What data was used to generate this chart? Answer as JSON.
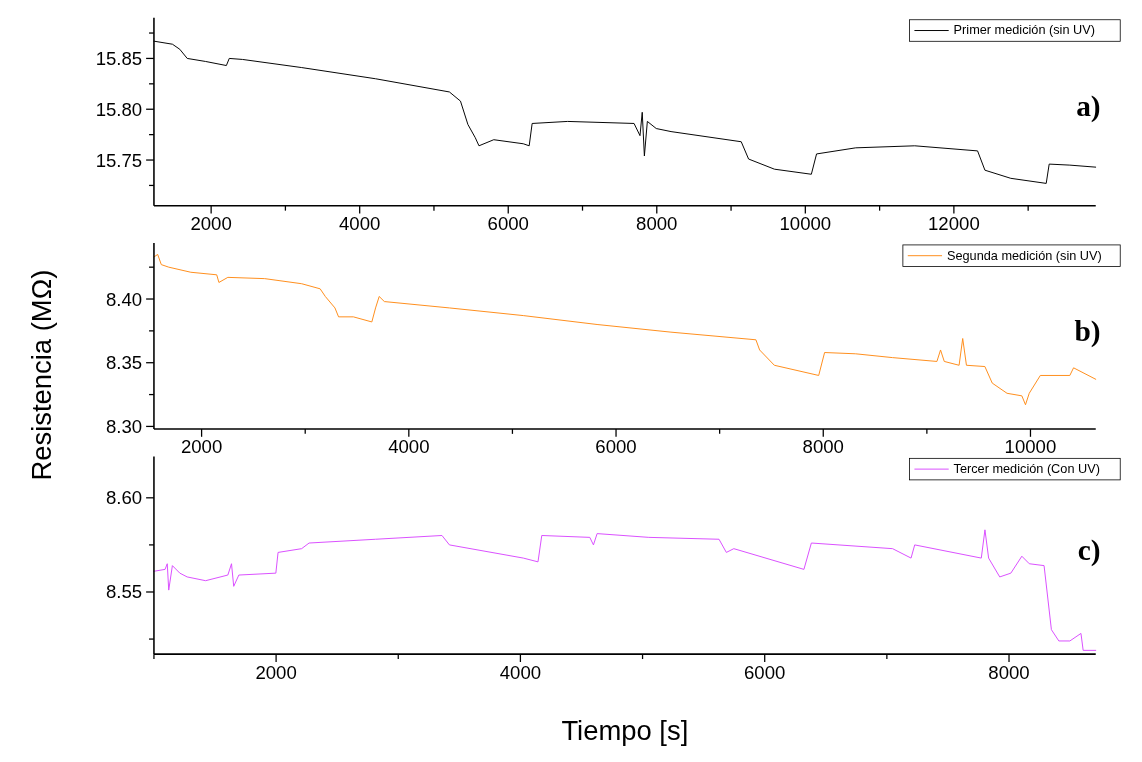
{
  "chart_data": [
    {
      "type": "line",
      "xlim": [
        1230,
        13910
      ],
      "ylim": [
        15.705,
        15.89
      ],
      "xticks": [
        2000,
        {
          "value": 3000,
          "label": null
        },
        4000,
        {
          "value": 5000,
          "label": null
        },
        6000,
        {
          "value": 7000,
          "label": null
        },
        8000,
        {
          "value": 9000,
          "label": null
        },
        10000,
        {
          "value": 11000,
          "label": null
        },
        12000,
        {
          "value": 13000,
          "label": null
        }
      ],
      "yticks": [
        {
          "value": 15.725,
          "label": null
        },
        {
          "value": 15.75,
          "label": "15.75"
        },
        {
          "value": 15.775,
          "label": null
        },
        {
          "value": 15.8,
          "label": "15.80"
        },
        {
          "value": 15.825,
          "label": null
        },
        {
          "value": 15.85,
          "label": "15.85"
        },
        {
          "value": 15.875,
          "label": null
        }
      ],
      "legend": "top right",
      "annotations": [
        "a)"
      ],
      "series": [
        {
          "name": "Primer medición (sin UV)",
          "color": "#000000",
          "x": [
            1230,
            1479,
            1578,
            1678,
            1926,
            2205,
            2244,
            2423,
            3219,
            4214,
            5208,
            5357,
            5457,
            5556,
            5606,
            5805,
            6203,
            6282,
            6322,
            6799,
            7694,
            7774,
            7804,
            7833,
            7873,
            7993,
            8192,
            9137,
            9236,
            9584,
            10081,
            10151,
            10678,
            11473,
            12319,
            12418,
            12766,
            13243,
            13283,
            13561,
            13909
          ],
          "values": [
            15.867,
            15.864,
            15.859,
            15.85,
            15.847,
            15.843,
            15.85,
            15.849,
            15.841,
            15.83,
            15.817,
            15.808,
            15.785,
            15.772,
            15.764,
            15.77,
            15.766,
            15.764,
            15.786,
            15.788,
            15.786,
            15.774,
            15.797,
            15.754,
            15.788,
            15.781,
            15.778,
            15.768,
            15.751,
            15.741,
            15.736,
            15.756,
            15.762,
            15.764,
            15.759,
            15.74,
            15.732,
            15.727,
            15.746,
            15.745,
            15.743
          ]
        }
      ]
    },
    {
      "type": "line",
      "xlim": [
        1540,
        10630
      ],
      "ylim": [
        8.298,
        8.444
      ],
      "ylabel": "Resistencia (MΩ)",
      "xticks": [
        2000,
        {
          "value": 3000,
          "label": null
        },
        4000,
        {
          "value": 5000,
          "label": null
        },
        6000,
        {
          "value": 7000,
          "label": null
        },
        8000,
        {
          "value": 9000,
          "label": null
        },
        10000
      ],
      "yticks": [
        {
          "value": 8.3,
          "label": "8.30"
        },
        {
          "value": 8.325,
          "label": null
        },
        {
          "value": 8.35,
          "label": "8.35"
        },
        {
          "value": 8.375,
          "label": null
        },
        {
          "value": 8.4,
          "label": "8.40"
        },
        {
          "value": 8.425,
          "label": null
        }
      ],
      "legend": "top right",
      "annotations": [
        "b)"
      ],
      "series": [
        {
          "name": "Segunda medición (sin UV)",
          "color": "#ff8c1a",
          "x": [
            1540,
            1576,
            1611,
            1683,
            1896,
            2146,
            2167,
            2253,
            2609,
            2966,
            3144,
            3194,
            3287,
            3322,
            3465,
            3643,
            3679,
            3714,
            3764,
            4392,
            5105,
            5817,
            6530,
            7350,
            7386,
            7528,
            7956,
            8013,
            8313,
            8669,
            9097,
            9132,
            9168,
            9311,
            9346,
            9382,
            9560,
            9631,
            9774,
            9917,
            9952,
            9988,
            10095,
            10380,
            10416,
            10630
          ],
          "values": [
            8.433,
            8.435,
            8.427,
            8.425,
            8.421,
            8.419,
            8.413,
            8.417,
            8.416,
            8.412,
            8.408,
            8.402,
            8.393,
            8.386,
            8.386,
            8.382,
            8.393,
            8.402,
            8.398,
            8.393,
            8.387,
            8.38,
            8.374,
            8.368,
            8.36,
            8.348,
            8.34,
            8.358,
            8.357,
            8.354,
            8.351,
            8.36,
            8.351,
            8.348,
            8.369,
            8.348,
            8.347,
            8.334,
            8.326,
            8.324,
            8.317,
            8.326,
            8.34,
            8.34,
            8.346,
            8.337
          ]
        }
      ]
    },
    {
      "type": "line",
      "xlim": [
        1000,
        8710
      ],
      "ylim": [
        8.517,
        8.622
      ],
      "xlabel": "Tiempo [s]",
      "xticks": [
        {
          "value": 1000,
          "label": null
        },
        2000,
        {
          "value": 3000,
          "label": null
        },
        4000,
        {
          "value": 5000,
          "label": null
        },
        6000,
        {
          "value": 7000,
          "label": null
        },
        8000
      ],
      "yticks": [
        {
          "value": 8.525,
          "label": null
        },
        {
          "value": 8.55,
          "label": "8.55"
        },
        {
          "value": 8.575,
          "label": null
        },
        {
          "value": 8.6,
          "label": "8.60"
        }
      ],
      "legend": "top right",
      "annotations": [
        "c)"
      ],
      "series": [
        {
          "name": "Tercer medición (Con UV)",
          "color": "#d94dff",
          "x": [
            1000,
            1091,
            1109,
            1121,
            1151,
            1212,
            1272,
            1423,
            1605,
            1635,
            1653,
            1695,
            1998,
            2016,
            2209,
            2270,
            2814,
            3358,
            3419,
            4024,
            4144,
            4175,
            4568,
            4598,
            4628,
            5051,
            5626,
            5686,
            5747,
            6321,
            6382,
            7047,
            7198,
            7228,
            7773,
            7803,
            7833,
            7924,
            8015,
            8105,
            8166,
            8287,
            8347,
            8408,
            8498,
            8589,
            8607,
            8710
          ],
          "values": [
            8.561,
            8.562,
            8.565,
            8.551,
            8.564,
            8.56,
            8.558,
            8.556,
            8.559,
            8.565,
            8.553,
            8.559,
            8.56,
            8.571,
            8.573,
            8.576,
            8.578,
            8.58,
            8.575,
            8.568,
            8.566,
            8.58,
            8.579,
            8.575,
            8.581,
            8.579,
            8.578,
            8.571,
            8.573,
            8.562,
            8.576,
            8.573,
            8.568,
            8.575,
            8.568,
            8.583,
            8.568,
            8.558,
            8.56,
            8.569,
            8.565,
            8.564,
            8.53,
            8.524,
            8.524,
            8.528,
            8.519,
            8.519
          ]
        }
      ]
    }
  ]
}
